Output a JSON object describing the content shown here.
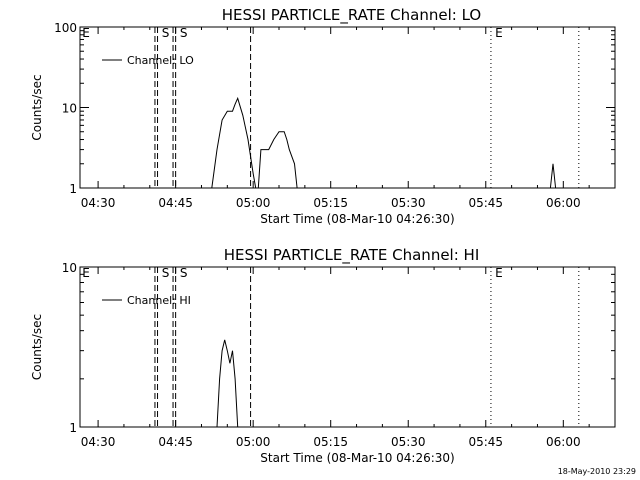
{
  "footer_date": "18-May-2010 23:29",
  "chart_data": [
    {
      "type": "line",
      "title": "HESSI PARTICLE_RATE Channel: LO",
      "xlabel": "Start Time (08-Mar-10 04:26:30)",
      "ylabel": "Counts/sec",
      "y_scale": "log",
      "ylim": [
        1,
        100
      ],
      "y_ticks": [
        1,
        10,
        100
      ],
      "xlim": [
        "04:26:30",
        "06:10:00"
      ],
      "x_ticks": [
        "04:30",
        "04:45",
        "05:00",
        "05:15",
        "05:30",
        "05:45",
        "06:00"
      ],
      "legend": {
        "position": "top-left",
        "entry": "Channel: LO"
      },
      "series": [
        {
          "name": "Channel: LO",
          "segments": [
            [
              [
                "04:52:00",
                1
              ],
              [
                "04:53:00",
                3
              ],
              [
                "04:54:00",
                7
              ],
              [
                "04:55:00",
                9
              ],
              [
                "04:56:00",
                9
              ],
              [
                "04:56:30",
                11
              ],
              [
                "04:57:00",
                13
              ],
              [
                "04:58:00",
                8
              ],
              [
                "04:59:00",
                4
              ],
              [
                "05:00:00",
                1.5
              ],
              [
                "05:00:30",
                1
              ]
            ],
            [
              [
                "05:01:00",
                1
              ],
              [
                "05:01:30",
                3
              ],
              [
                "05:03:00",
                3
              ],
              [
                "05:04:00",
                4
              ],
              [
                "05:05:00",
                5
              ],
              [
                "05:06:00",
                5
              ],
              [
                "05:06:30",
                4
              ],
              [
                "05:07:00",
                3
              ],
              [
                "05:08:00",
                2
              ],
              [
                "05:08:30",
                1
              ]
            ],
            [
              [
                "05:57:30",
                1
              ],
              [
                "05:58:00",
                2
              ],
              [
                "05:58:30",
                1
              ]
            ]
          ]
        }
      ],
      "markers": [
        {
          "label": "E",
          "time": "04:26:30",
          "style": "none"
        },
        {
          "label": "S",
          "time": "04:41:30",
          "style": "dashed"
        },
        {
          "label": "",
          "time": "04:41:00",
          "style": "dashed"
        },
        {
          "label": "S",
          "time": "04:45:00",
          "style": "dashed"
        },
        {
          "label": "",
          "time": "04:44:30",
          "style": "dashed"
        },
        {
          "label": "",
          "time": "04:59:30",
          "style": "dashed"
        },
        {
          "label": "E",
          "time": "05:46:00",
          "style": "dotted"
        },
        {
          "label": "",
          "time": "06:03:00",
          "style": "dotted"
        }
      ]
    },
    {
      "type": "line",
      "title": "HESSI PARTICLE_RATE Channel: HI",
      "xlabel": "Start Time (08-Mar-10 04:26:30)",
      "ylabel": "Counts/sec",
      "y_scale": "log",
      "ylim": [
        1,
        10
      ],
      "y_ticks": [
        1,
        10
      ],
      "xlim": [
        "04:26:30",
        "06:10:00"
      ],
      "x_ticks": [
        "04:30",
        "04:45",
        "05:00",
        "05:15",
        "05:30",
        "05:45",
        "06:00"
      ],
      "legend": {
        "position": "top-left",
        "entry": "Channel: HI"
      },
      "series": [
        {
          "name": "Channel: HI",
          "segments": [
            [
              [
                "04:53:00",
                1
              ],
              [
                "04:53:30",
                2
              ],
              [
                "04:54:00",
                3
              ],
              [
                "04:54:30",
                3.5
              ],
              [
                "04:55:00",
                3
              ],
              [
                "04:55:30",
                2.5
              ],
              [
                "04:56:00",
                3
              ],
              [
                "04:56:30",
                2
              ],
              [
                "04:57:00",
                1
              ]
            ]
          ]
        }
      ],
      "markers": [
        {
          "label": "E",
          "time": "04:26:30",
          "style": "none"
        },
        {
          "label": "S",
          "time": "04:41:30",
          "style": "dashed"
        },
        {
          "label": "",
          "time": "04:41:00",
          "style": "dashed"
        },
        {
          "label": "S",
          "time": "04:45:00",
          "style": "dashed"
        },
        {
          "label": "",
          "time": "04:44:30",
          "style": "dashed"
        },
        {
          "label": "",
          "time": "04:59:30",
          "style": "dashed"
        },
        {
          "label": "E",
          "time": "05:46:00",
          "style": "dotted"
        },
        {
          "label": "",
          "time": "06:03:00",
          "style": "dotted"
        }
      ]
    }
  ]
}
